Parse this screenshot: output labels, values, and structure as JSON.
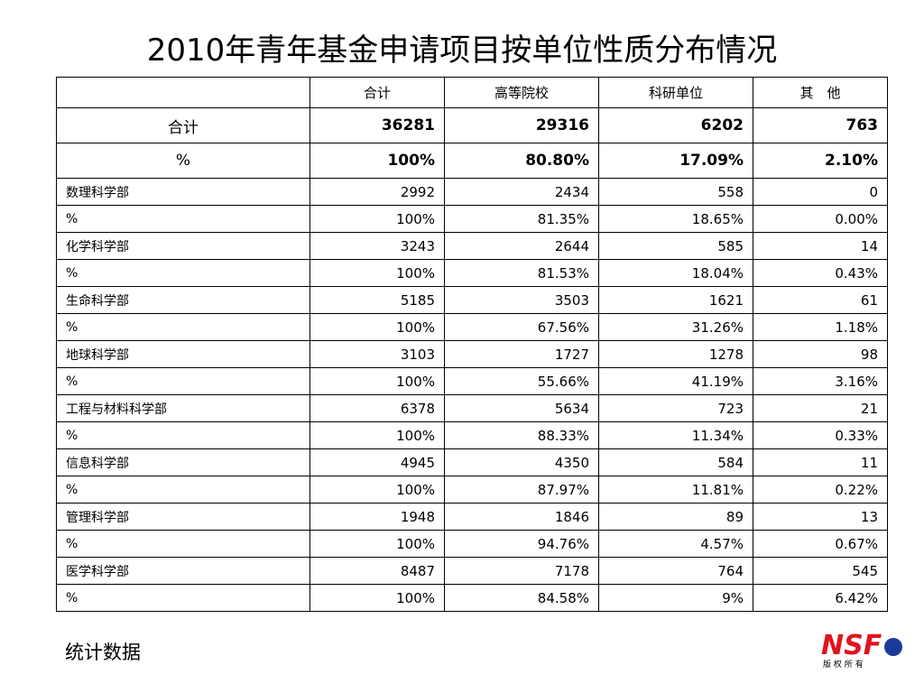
{
  "title": "2010年青年基金申请项目按单位性质分布情况",
  "table": {
    "columns": [
      "合计",
      "高等院校",
      "科研单位",
      "其　他"
    ],
    "summary_rows": [
      [
        "合计",
        "36281",
        "29316",
        "6202",
        "763"
      ],
      [
        "%",
        "100%",
        "80.80%",
        "17.09%",
        "2.10%"
      ]
    ],
    "rows": [
      [
        "数理科学部",
        "2992",
        "2434",
        "558",
        "0"
      ],
      [
        "%",
        "100%",
        "81.35%",
        "18.65%",
        "0.00%"
      ],
      [
        "化学科学部",
        "3243",
        "2644",
        "585",
        "14"
      ],
      [
        "%",
        "100%",
        "81.53%",
        "18.04%",
        "0.43%"
      ],
      [
        "生命科学部",
        "5185",
        "3503",
        "1621",
        "61"
      ],
      [
        "%",
        "100%",
        "67.56%",
        "31.26%",
        "1.18%"
      ],
      [
        "地球科学部",
        "3103",
        "1727",
        "1278",
        "98"
      ],
      [
        "%",
        "100%",
        "55.66%",
        "41.19%",
        "3.16%"
      ],
      [
        "工程与材料科学部",
        "6378",
        "5634",
        "723",
        "21"
      ],
      [
        "%",
        "100%",
        "88.33%",
        "11.34%",
        "0.33%"
      ],
      [
        "信息科学部",
        "4945",
        "4350",
        "584",
        "11"
      ],
      [
        "%",
        "100%",
        "87.97%",
        "11.81%",
        "0.22%"
      ],
      [
        "管理科学部",
        "1948",
        "1846",
        "89",
        "13"
      ],
      [
        "%",
        "100%",
        "94.76%",
        "4.57%",
        "0.67%"
      ],
      [
        "医学科学部",
        "8487",
        "7178",
        "764",
        "545"
      ],
      [
        "%",
        "100%",
        "84.58%",
        "9%",
        "6.42%"
      ]
    ]
  },
  "footer": "统计数据",
  "logo": {
    "text": "NSF",
    "caption": "版 权 所 有"
  }
}
